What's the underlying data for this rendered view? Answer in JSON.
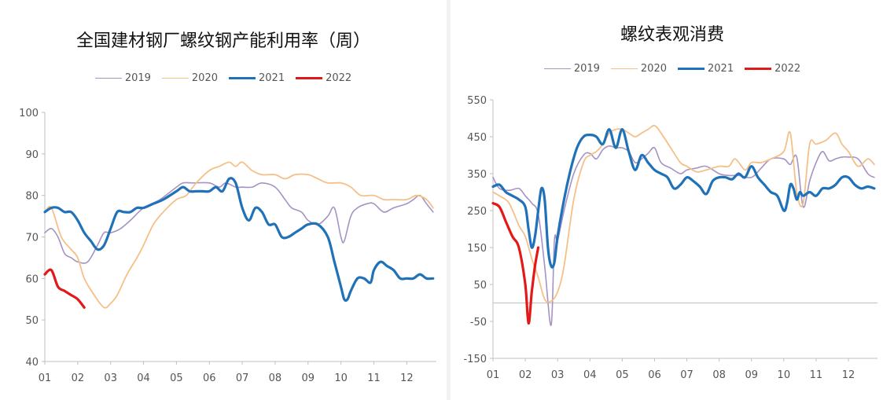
{
  "chart_data": [
    {
      "type": "line",
      "title": "全国建材钢厂螺纹钢产能利用率（周）",
      "xlabel": "",
      "ylabel": "",
      "x_ticks": [
        "01",
        "02",
        "03",
        "04",
        "05",
        "06",
        "07",
        "08",
        "09",
        "10",
        "11",
        "12"
      ],
      "x_range": [
        1,
        12.9
      ],
      "ylim": [
        40,
        100
      ],
      "y_ticks": [
        40,
        50,
        60,
        70,
        80,
        90,
        100
      ],
      "grid": false,
      "legend": "top",
      "series": [
        {
          "name": "2019",
          "color": "#a493c4",
          "width": 1.6,
          "x": [
            1.0,
            1.2,
            1.4,
            1.6,
            1.8,
            2.0,
            2.3,
            2.6,
            2.8,
            3.0,
            3.3,
            3.6,
            4.0,
            4.5,
            5.0,
            5.2,
            5.5,
            6.0,
            6.3,
            6.5,
            6.8,
            7.0,
            7.3,
            7.6,
            8.0,
            8.3,
            8.5,
            8.8,
            9.0,
            9.3,
            9.6,
            9.8,
            10.0,
            10.1,
            10.3,
            10.5,
            10.8,
            11.0,
            11.3,
            11.6,
            12.0,
            12.2,
            12.4,
            12.6,
            12.8
          ],
          "y": [
            71,
            72,
            70,
            66,
            65,
            64,
            64,
            68,
            71,
            71,
            72,
            74,
            77,
            79,
            82,
            83,
            83,
            83,
            82,
            83,
            82,
            82,
            82,
            83,
            82,
            79,
            77,
            76,
            74,
            73,
            75,
            77,
            70,
            69,
            75,
            77,
            78,
            78,
            76,
            77,
            78,
            79,
            80,
            78,
            76
          ]
        },
        {
          "name": "2020",
          "color": "#f5c088",
          "width": 1.8,
          "x": [
            1.0,
            1.2,
            1.5,
            1.8,
            2.0,
            2.2,
            2.5,
            2.8,
            3.0,
            3.2,
            3.5,
            3.8,
            4.0,
            4.3,
            4.6,
            5.0,
            5.3,
            5.6,
            6.0,
            6.3,
            6.6,
            6.8,
            7.0,
            7.3,
            7.6,
            8.0,
            8.3,
            8.6,
            9.0,
            9.3,
            9.6,
            10.0,
            10.3,
            10.6,
            11.0,
            11.3,
            11.6,
            12.0,
            12.3,
            12.6,
            12.8
          ],
          "y": [
            76,
            77,
            70,
            67,
            65,
            60,
            56,
            53,
            54,
            56,
            61,
            65,
            68,
            73,
            76,
            79,
            80,
            83,
            86,
            87,
            88,
            87,
            88,
            86,
            85,
            85,
            84,
            85,
            85,
            84,
            83,
            83,
            82,
            80,
            80,
            79,
            79,
            79,
            80,
            79,
            77
          ]
        },
        {
          "name": "2021",
          "color": "#1f71b8",
          "width": 3.2,
          "x": [
            1.0,
            1.2,
            1.4,
            1.6,
            1.8,
            2.0,
            2.2,
            2.4,
            2.6,
            2.8,
            3.0,
            3.2,
            3.4,
            3.6,
            3.8,
            4.0,
            4.3,
            4.6,
            5.0,
            5.2,
            5.4,
            5.6,
            5.8,
            6.0,
            6.2,
            6.4,
            6.6,
            6.8,
            7.0,
            7.2,
            7.4,
            7.6,
            7.8,
            8.0,
            8.2,
            8.4,
            8.6,
            8.8,
            9.0,
            9.3,
            9.6,
            9.8,
            10.0,
            10.1,
            10.2,
            10.3,
            10.5,
            10.7,
            10.9,
            11.0,
            11.2,
            11.4,
            11.6,
            11.8,
            12.0,
            12.2,
            12.4,
            12.6,
            12.8
          ],
          "y": [
            76,
            77,
            77,
            76,
            76,
            74,
            71,
            69,
            67,
            68,
            72,
            76,
            76,
            76,
            77,
            77,
            78,
            79,
            81,
            82,
            81,
            81,
            81,
            81,
            82,
            81,
            84,
            83,
            77,
            74,
            77,
            76,
            73,
            73,
            70,
            70,
            71,
            72,
            73,
            73,
            70,
            64,
            58,
            55,
            55,
            57,
            60,
            60,
            59,
            62,
            64,
            63,
            62,
            60,
            60,
            60,
            61,
            60,
            60
          ]
        },
        {
          "name": "2022",
          "color": "#e31919",
          "width": 3.2,
          "x": [
            1.0,
            1.2,
            1.4,
            1.6,
            1.8,
            2.0,
            2.2
          ],
          "y": [
            61,
            62,
            58,
            57,
            56,
            55,
            53
          ]
        }
      ]
    },
    {
      "type": "line",
      "title": "螺纹表观消费",
      "xlabel": "",
      "ylabel": "",
      "x_ticks": [
        "01",
        "02",
        "03",
        "04",
        "05",
        "06",
        "07",
        "08",
        "09",
        "10",
        "11",
        "12"
      ],
      "x_range": [
        1,
        12.9
      ],
      "ylim": [
        -150,
        550
      ],
      "y_ticks": [
        -150,
        -50,
        50,
        150,
        250,
        350,
        450,
        550
      ],
      "grid": false,
      "legend": "top",
      "series": [
        {
          "name": "2019",
          "color": "#a493c4",
          "width": 1.6,
          "x": [
            1.0,
            1.2,
            1.5,
            1.8,
            2.0,
            2.2,
            2.4,
            2.6,
            2.8,
            2.9,
            3.0,
            3.2,
            3.5,
            3.8,
            4.0,
            4.2,
            4.4,
            4.6,
            4.8,
            5.0,
            5.2,
            5.4,
            5.6,
            5.8,
            6.0,
            6.2,
            6.5,
            6.8,
            7.0,
            7.3,
            7.6,
            8.0,
            8.3,
            8.6,
            9.0,
            9.3,
            9.6,
            10.0,
            10.2,
            10.4,
            10.6,
            10.8,
            11.0,
            11.2,
            11.4,
            11.6,
            11.8,
            12.0,
            12.3,
            12.6,
            12.8
          ],
          "y": [
            340,
            310,
            305,
            310,
            290,
            270,
            240,
            100,
            -60,
            170,
            170,
            250,
            350,
            400,
            405,
            390,
            415,
            425,
            420,
            420,
            410,
            380,
            390,
            405,
            420,
            380,
            365,
            350,
            360,
            365,
            370,
            350,
            345,
            345,
            340,
            365,
            390,
            390,
            375,
            395,
            260,
            330,
            380,
            410,
            385,
            390,
            395,
            395,
            390,
            350,
            340
          ]
        },
        {
          "name": "2020",
          "color": "#f5c088",
          "width": 1.8,
          "x": [
            1.0,
            1.2,
            1.5,
            1.8,
            2.0,
            2.2,
            2.4,
            2.6,
            2.8,
            3.0,
            3.2,
            3.5,
            3.8,
            4.0,
            4.2,
            4.4,
            4.6,
            4.8,
            5.0,
            5.2,
            5.4,
            5.6,
            5.8,
            6.0,
            6.2,
            6.5,
            6.8,
            7.0,
            7.3,
            7.6,
            8.0,
            8.3,
            8.5,
            8.8,
            9.0,
            9.3,
            9.6,
            10.0,
            10.2,
            10.4,
            10.6,
            10.8,
            11.0,
            11.3,
            11.6,
            11.8,
            12.0,
            12.3,
            12.6,
            12.8
          ],
          "y": [
            300,
            290,
            270,
            210,
            180,
            120,
            70,
            10,
            5,
            30,
            100,
            280,
            380,
            400,
            410,
            430,
            460,
            470,
            470,
            460,
            450,
            460,
            470,
            480,
            460,
            420,
            380,
            370,
            355,
            360,
            370,
            370,
            390,
            360,
            380,
            380,
            390,
            410,
            460,
            300,
            270,
            430,
            430,
            440,
            460,
            430,
            410,
            370,
            390,
            375
          ]
        },
        {
          "name": "2021",
          "color": "#1f71b8",
          "width": 3.2,
          "x": [
            1.0,
            1.2,
            1.4,
            1.6,
            1.8,
            2.0,
            2.1,
            2.2,
            2.3,
            2.4,
            2.5,
            2.6,
            2.7,
            2.8,
            2.9,
            3.0,
            3.2,
            3.4,
            3.6,
            3.8,
            4.0,
            4.2,
            4.4,
            4.6,
            4.8,
            5.0,
            5.2,
            5.4,
            5.6,
            5.8,
            6.0,
            6.2,
            6.4,
            6.6,
            6.8,
            7.0,
            7.2,
            7.4,
            7.6,
            7.8,
            8.0,
            8.2,
            8.4,
            8.6,
            8.8,
            9.0,
            9.2,
            9.4,
            9.6,
            9.8,
            10.0,
            10.1,
            10.2,
            10.3,
            10.4,
            10.5,
            10.6,
            10.8,
            11.0,
            11.2,
            11.4,
            11.6,
            11.8,
            12.0,
            12.2,
            12.4,
            12.6,
            12.8
          ],
          "y": [
            315,
            320,
            300,
            290,
            280,
            260,
            200,
            150,
            180,
            250,
            310,
            280,
            150,
            100,
            110,
            180,
            280,
            360,
            420,
            450,
            455,
            450,
            430,
            470,
            420,
            470,
            410,
            360,
            400,
            380,
            360,
            350,
            340,
            310,
            320,
            340,
            330,
            315,
            295,
            330,
            340,
            340,
            335,
            350,
            340,
            370,
            340,
            320,
            300,
            290,
            250,
            270,
            320,
            310,
            280,
            300,
            290,
            300,
            290,
            310,
            310,
            320,
            340,
            340,
            320,
            310,
            315,
            310
          ]
        },
        {
          "name": "2022",
          "color": "#e31919",
          "width": 3.2,
          "x": [
            1.0,
            1.2,
            1.4,
            1.6,
            1.8,
            2.0,
            2.1,
            2.2,
            2.3,
            2.4
          ],
          "y": [
            270,
            260,
            220,
            180,
            150,
            50,
            -55,
            30,
            100,
            150
          ]
        }
      ]
    }
  ]
}
